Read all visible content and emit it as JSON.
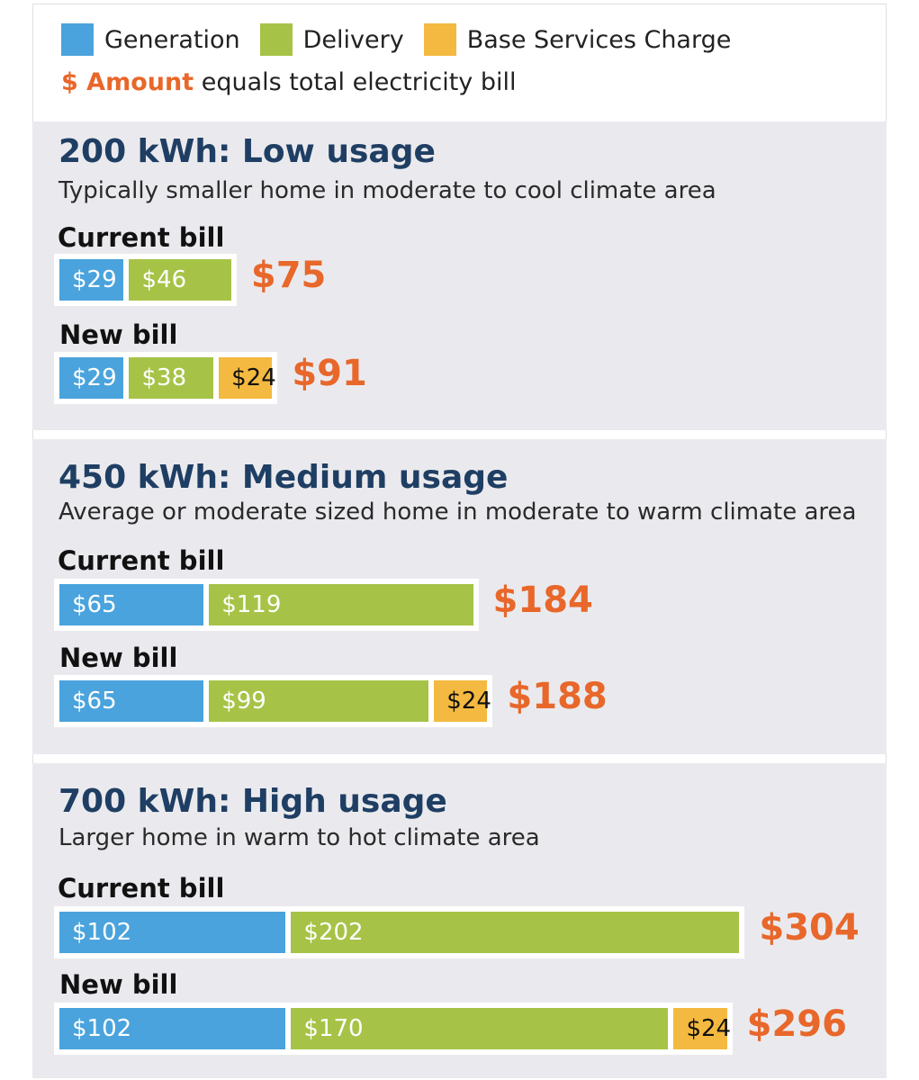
{
  "legend": {
    "generation": "Generation",
    "delivery": "Delivery",
    "base": "Base Services Charge",
    "note_amount": "$ Amount",
    "note_rest": " equals total electricity bill"
  },
  "colors": {
    "generation": "#4aa3dc",
    "delivery": "#a6c347",
    "base": "#f4b940",
    "total": "#e8672a",
    "title": "#1f3e63",
    "panel": "#eaeaee"
  },
  "chart_data": {
    "type": "bar",
    "orientation": "horizontal-stacked",
    "series_names": [
      "Generation",
      "Delivery",
      "Base Services Charge"
    ],
    "unit": "$",
    "panels": [
      {
        "title": "200 kWh: Low usage",
        "subtitle": "Typically smaller home in moderate to cool climate area",
        "bills": [
          {
            "label": "Current bill",
            "generation": 29,
            "delivery": 46,
            "base": null,
            "total": 75,
            "labels": {
              "generation": "$29",
              "delivery": "$46",
              "base": "",
              "total": "$75"
            }
          },
          {
            "label": "New bill",
            "generation": 29,
            "delivery": 38,
            "base": 24,
            "total": 91,
            "labels": {
              "generation": "$29",
              "delivery": "$38",
              "base": "$24",
              "total": "$91"
            }
          }
        ]
      },
      {
        "title": "450 kWh: Medium usage",
        "subtitle": "Average or moderate sized home in moderate to warm climate area",
        "bills": [
          {
            "label": "Current bill",
            "generation": 65,
            "delivery": 119,
            "base": null,
            "total": 184,
            "labels": {
              "generation": "$65",
              "delivery": "$119",
              "base": "",
              "total": "$184"
            }
          },
          {
            "label": "New bill",
            "generation": 65,
            "delivery": 99,
            "base": 24,
            "total": 188,
            "labels": {
              "generation": "$65",
              "delivery": "$99",
              "base": "$24",
              "total": "$188"
            }
          }
        ]
      },
      {
        "title": "700 kWh: High usage",
        "subtitle": "Larger home in warm to hot climate area",
        "bills": [
          {
            "label": "Current bill",
            "generation": 102,
            "delivery": 202,
            "base": null,
            "total": 304,
            "labels": {
              "generation": "$102",
              "delivery": "$202",
              "base": "",
              "total": "$304"
            }
          },
          {
            "label": "New bill",
            "generation": 102,
            "delivery": 170,
            "base": 24,
            "total": 296,
            "labels": {
              "generation": "$102",
              "delivery": "$170",
              "base": "$24",
              "total": "$296"
            }
          }
        ]
      }
    ]
  }
}
